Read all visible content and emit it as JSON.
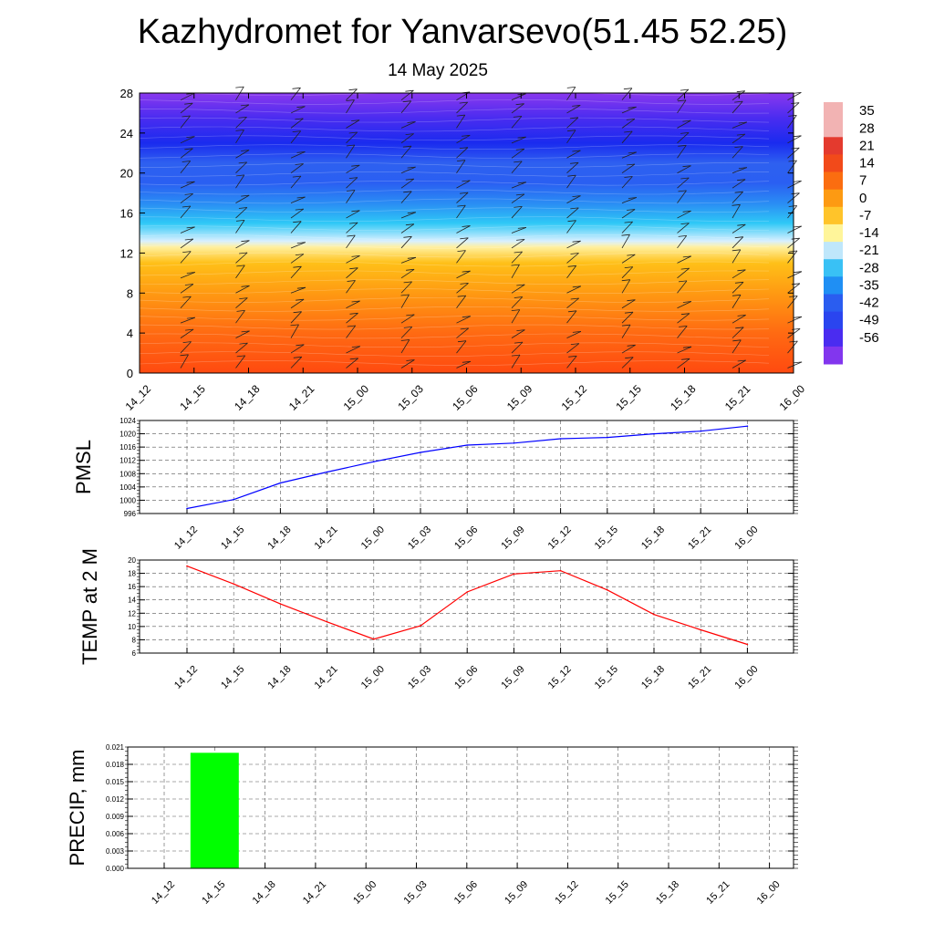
{
  "header": {
    "title": "Kazhydromet for Yanvarsevo(51.45 52.25)",
    "subtitle": "14 May 2025"
  },
  "time_labels": [
    "14_12",
    "14_15",
    "14_18",
    "14_21",
    "15_00",
    "15_03",
    "15_06",
    "15_09",
    "15_12",
    "15_15",
    "15_18",
    "15_21",
    "16_00"
  ],
  "chart_data": [
    {
      "type": "heatmap",
      "title": "",
      "ylabel": "",
      "x": [
        "14_12",
        "14_15",
        "14_18",
        "14_21",
        "15_00",
        "15_03",
        "15_06",
        "15_09",
        "15_12",
        "15_15",
        "15_18",
        "15_21",
        "16_00"
      ],
      "y_ticks": [
        0,
        4,
        8,
        12,
        16,
        20,
        24,
        28
      ],
      "ylim": [
        0,
        28
      ],
      "color_levels": [
        35,
        28,
        21,
        14,
        7,
        0,
        -7,
        -14,
        -21,
        -28,
        -35,
        -42,
        -49,
        -56
      ],
      "colorbar_labels": [
        "35",
        "28",
        "21",
        "14",
        "7",
        "0",
        "-7",
        "-14",
        "-21",
        "-28",
        "-35",
        "-42",
        "-49",
        "-56"
      ],
      "colorbar_colors": [
        "#f2b3b3",
        "#e43a2e",
        "#f24a1a",
        "#fb6d10",
        "#fd9a12",
        "#ffc42a",
        "#fff59a",
        "#bfe7fb",
        "#39c1f5",
        "#1f8ff4",
        "#2a5df0",
        "#2a45ef",
        "#4a2cf0",
        "#8236ee"
      ],
      "column_profile": [
        {
          "z": 0,
          "color": "#ff4a10"
        },
        {
          "z": 4,
          "color": "#ff6a12"
        },
        {
          "z": 8,
          "color": "#ff9a12"
        },
        {
          "z": 11,
          "color": "#ffc018"
        },
        {
          "z": 12.6,
          "color": "#fff0a0"
        },
        {
          "z": 13.2,
          "color": "#d8f0ff"
        },
        {
          "z": 15,
          "color": "#2ec8f6"
        },
        {
          "z": 17,
          "color": "#2a8cf4"
        },
        {
          "z": 19,
          "color": "#2a5ff2"
        },
        {
          "z": 21,
          "color": "#2e60f0"
        },
        {
          "z": 23,
          "color": "#1a2bef"
        },
        {
          "z": 25.5,
          "color": "#4a2cf0"
        },
        {
          "z": 28,
          "color": "#8a38ee"
        }
      ],
      "overlay": "wind barbs"
    },
    {
      "type": "line",
      "ylabel": "PMSL",
      "x": [
        "14_12",
        "14_15",
        "14_18",
        "14_21",
        "15_00",
        "15_03",
        "15_06",
        "15_09",
        "15_12",
        "15_15",
        "15_18",
        "15_21",
        "16_00"
      ],
      "y_ticks": [
        "996",
        "1000",
        "1004",
        "1008",
        "1012",
        "1016",
        "1020",
        "1024"
      ],
      "ylim": [
        996,
        1024
      ],
      "series": [
        {
          "values": [
            997.5,
            1000.2,
            1005.2,
            1008.5,
            1011.6,
            1014.4,
            1016.6,
            1017.2,
            1018.5,
            1018.9,
            1020.0,
            1020.8,
            1022.3
          ],
          "color": "#0000ff"
        }
      ],
      "grid": true
    },
    {
      "type": "line",
      "ylabel": "TEMP at 2 M",
      "x": [
        "14_12",
        "14_15",
        "14_18",
        "14_21",
        "15_00",
        "15_03",
        "15_06",
        "15_09",
        "15_12",
        "15_15",
        "15_18",
        "15_21",
        "16_00"
      ],
      "y_ticks": [
        "6",
        "8",
        "10",
        "12",
        "14",
        "16",
        "18",
        "20"
      ],
      "ylim": [
        6,
        20
      ],
      "series": [
        {
          "values": [
            19.1,
            16.4,
            13.4,
            10.7,
            8.1,
            10.1,
            15.2,
            17.9,
            18.4,
            15.5,
            11.8,
            9.5,
            7.3
          ],
          "color": "#ff0000"
        }
      ],
      "grid": true
    },
    {
      "type": "bar",
      "ylabel": "PRECIP, mm",
      "categories": [
        "14_12",
        "14_15",
        "14_18",
        "14_21",
        "15_00",
        "15_03",
        "15_06",
        "15_09",
        "15_12",
        "15_15",
        "15_18",
        "15_21",
        "16_00"
      ],
      "values": [
        0,
        0.02,
        0,
        0,
        0,
        0,
        0,
        0,
        0,
        0,
        0,
        0,
        0
      ],
      "y_ticks": [
        "0.000",
        "0.003",
        "0.006",
        "0.009",
        "0.012",
        "0.015",
        "0.018",
        "0.021"
      ],
      "ylim": [
        0,
        0.021
      ],
      "color": "#00ff00",
      "grid": true
    }
  ]
}
